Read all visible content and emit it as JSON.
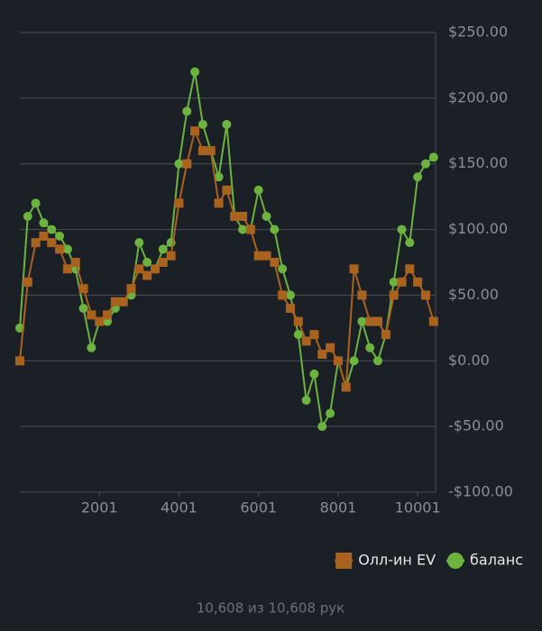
{
  "chart_data": {
    "type": "line",
    "x": [
      1,
      200,
      400,
      600,
      800,
      1000,
      1200,
      1400,
      1600,
      1800,
      2000,
      2200,
      2400,
      2600,
      2800,
      3000,
      3200,
      3400,
      3600,
      3800,
      4000,
      4200,
      4400,
      4600,
      4800,
      5000,
      5200,
      5400,
      5600,
      5800,
      6000,
      6200,
      6400,
      6600,
      6800,
      7000,
      7200,
      7400,
      7600,
      7800,
      8000,
      8200,
      8400,
      8600,
      8800,
      9000,
      9200,
      9400,
      9600,
      9800,
      10000,
      10200,
      10400
    ],
    "series": [
      {
        "name": "баланс",
        "color": "#6db33f",
        "marker": "circle",
        "values": [
          25,
          110,
          120,
          105,
          100,
          95,
          85,
          70,
          40,
          10,
          30,
          30,
          40,
          45,
          50,
          90,
          75,
          70,
          85,
          90,
          150,
          190,
          220,
          180,
          160,
          140,
          180,
          110,
          100,
          100,
          130,
          110,
          100,
          70,
          50,
          20,
          -30,
          -10,
          -50,
          -40,
          0,
          -20,
          0,
          30,
          10,
          0,
          20,
          60,
          100,
          90,
          140,
          150,
          155
        ]
      },
      {
        "name": "Олл-ин EV",
        "color": "#a9631f",
        "marker": "square",
        "values": [
          0,
          60,
          90,
          95,
          90,
          85,
          70,
          75,
          55,
          35,
          30,
          35,
          45,
          45,
          55,
          70,
          65,
          70,
          75,
          80,
          120,
          150,
          175,
          160,
          160,
          120,
          130,
          110,
          110,
          100,
          80,
          80,
          75,
          50,
          40,
          30,
          15,
          20,
          5,
          10,
          0,
          -20,
          70,
          50,
          30,
          30,
          20,
          50,
          60,
          70,
          60,
          50,
          30
        ]
      }
    ],
    "xlim": [
      1,
      10450
    ],
    "xticks": [
      2001,
      4001,
      6001,
      8001,
      10001
    ],
    "ylim": [
      -100,
      250
    ],
    "yticks": [
      {
        "value": -100,
        "label": "-$100.00"
      },
      {
        "value": -50,
        "label": "-$50.00"
      },
      {
        "value": 0,
        "label": "$0.00"
      },
      {
        "value": 50,
        "label": "$50.00"
      },
      {
        "value": 100,
        "label": "$100.00"
      },
      {
        "value": 150,
        "label": "$150.00"
      },
      {
        "value": 200,
        "label": "$200.00"
      },
      {
        "value": 250,
        "label": "$250.00"
      }
    ],
    "grid": true,
    "legend": "bottom-right",
    "footer": "10,608 из 10,608 рук"
  }
}
